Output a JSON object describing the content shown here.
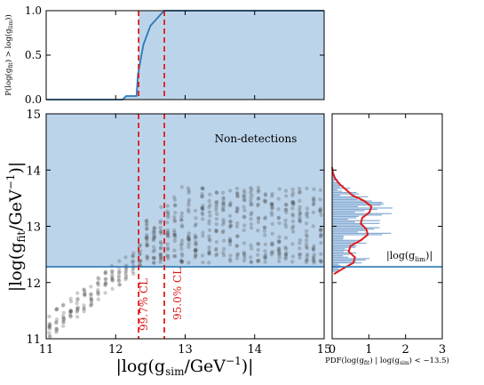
{
  "chart_data": [
    {
      "panel": "top",
      "type": "line",
      "ylabel": "P(log(g_fit) > log(g_lim))",
      "xlim": [
        11,
        15
      ],
      "ylim": [
        0,
        1
      ],
      "yticks": [
        "0.0",
        "0.5",
        "1.0"
      ],
      "series": [
        {
          "x": [
            11.0,
            12.1,
            12.15,
            12.3,
            12.32,
            12.4,
            12.5,
            12.65,
            12.7,
            15.0
          ],
          "y": [
            0.0,
            0.0,
            0.04,
            0.04,
            0.28,
            0.62,
            0.83,
            0.96,
            1.0,
            1.0
          ]
        }
      ],
      "shaded_region": {
        "x_from": 12.33,
        "x_to": 15.0
      },
      "vlines": [
        12.33,
        12.7
      ]
    },
    {
      "panel": "main",
      "type": "scatter",
      "xlabel": "|log(g_sim/GeV^-1)|",
      "ylabel": "|log(g_fit/GeV^-1)|",
      "xlim": [
        11,
        15
      ],
      "ylim": [
        11,
        15
      ],
      "xticks": [
        "11",
        "12",
        "13",
        "14",
        "15"
      ],
      "yticks": [
        "11",
        "12",
        "13",
        "14",
        "15"
      ],
      "non_detection_threshold": 12.28,
      "vlines": [
        {
          "x": 12.33,
          "label": "99.7% CL"
        },
        {
          "x": 12.7,
          "label": "95.0% CL"
        }
      ],
      "annotation": "Non-detections",
      "scatter_model": {
        "x_start": 11.05,
        "x_end": 14.95,
        "x_step": 0.1,
        "trend_below": 12.4,
        "band_low": 12.35,
        "band_high": 13.7
      }
    },
    {
      "panel": "right",
      "type": "histogram",
      "xlabel": "PDF(log(g_fit) | log(g_sim) < -13.5)",
      "xlim": [
        0,
        3
      ],
      "ylim": [
        11,
        15
      ],
      "xticks": [
        "0",
        "1",
        "2",
        "3"
      ],
      "threshold_label": "|log(g_lim)|",
      "threshold": 12.28,
      "kde": {
        "y": [
          12.15,
          12.25,
          12.35,
          12.45,
          12.55,
          12.65,
          12.75,
          12.85,
          12.95,
          13.05,
          13.15,
          13.25,
          13.35,
          13.45,
          13.55,
          13.65,
          13.75,
          13.85,
          13.95,
          14.05
        ],
        "pdf": [
          0.05,
          0.3,
          0.58,
          0.62,
          0.45,
          0.5,
          0.78,
          0.97,
          0.93,
          0.78,
          0.82,
          1.02,
          1.07,
          0.88,
          0.55,
          0.38,
          0.2,
          0.08,
          0.02,
          0.0
        ]
      }
    }
  ]
}
